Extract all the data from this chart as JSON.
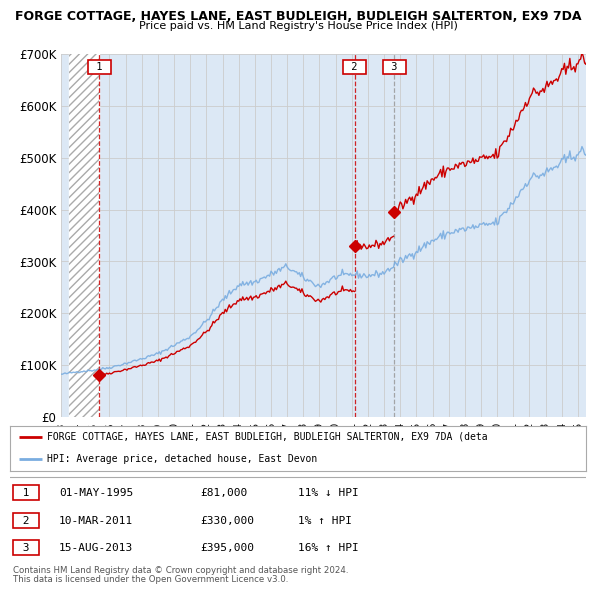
{
  "title": "FORGE COTTAGE, HAYES LANE, EAST BUDLEIGH, BUDLEIGH SALTERTON, EX9 7DA",
  "subtitle": "Price paid vs. HM Land Registry's House Price Index (HPI)",
  "legend_label_red": "FORGE COTTAGE, HAYES LANE, EAST BUDLEIGH, BUDLEIGH SALTERTON, EX9 7DA (deta",
  "legend_label_blue": "HPI: Average price, detached house, East Devon",
  "footer1": "Contains HM Land Registry data © Crown copyright and database right 2024.",
  "footer2": "This data is licensed under the Open Government Licence v3.0.",
  "transactions": [
    {
      "num": 1,
      "date": "01-MAY-1995",
      "price": "£81,000",
      "hpi": "11% ↓ HPI",
      "year": 1995.37
    },
    {
      "num": 2,
      "date": "10-MAR-2011",
      "price": "£330,000",
      "hpi": "1% ↑ HPI",
      "year": 2011.19
    },
    {
      "num": 3,
      "date": "15-AUG-2013",
      "price": "£395,000",
      "hpi": "16% ↑ HPI",
      "year": 2013.62
    }
  ],
  "transaction_prices": [
    81000,
    330000,
    395000
  ],
  "t1_year": 1995.37,
  "t2_year": 2011.19,
  "t3_year": 2013.62,
  "ylim": [
    0,
    700000
  ],
  "yticks": [
    0,
    100000,
    200000,
    300000,
    400000,
    500000,
    600000,
    700000
  ],
  "xlim_start": 1993.5,
  "xlim_end": 2025.5,
  "xtick_years": [
    1993,
    1994,
    1995,
    1996,
    1997,
    1998,
    1999,
    2000,
    2001,
    2002,
    2003,
    2004,
    2005,
    2006,
    2007,
    2008,
    2009,
    2010,
    2011,
    2012,
    2013,
    2014,
    2015,
    2016,
    2017,
    2018,
    2019,
    2020,
    2021,
    2022,
    2023,
    2024,
    2025
  ],
  "hatch_end_year": 1995.37,
  "red_line_color": "#cc0000",
  "blue_line_color": "#7aade0",
  "hatch_color": "#bbbbbb",
  "grid_color": "#cccccc",
  "background_color": "#ffffff",
  "plot_bg_color": "#dce8f5"
}
